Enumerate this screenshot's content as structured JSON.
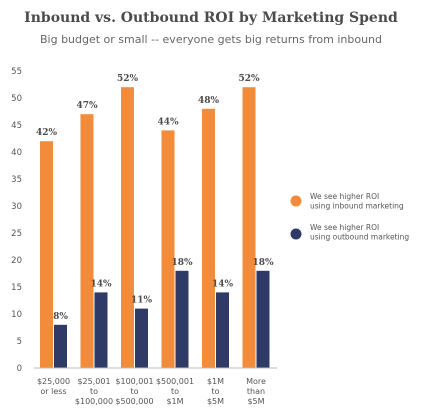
{
  "chart_data": {
    "type": "bar",
    "title": "Inbound vs. Outbound ROI by Marketing Spend",
    "subtitle": "Big budget or small -- everyone gets big returns from inbound",
    "categories": [
      [
        "$25,000",
        "or less"
      ],
      [
        "$25,001",
        "to",
        "$100,000"
      ],
      [
        "$100,001",
        "to",
        "$500,000"
      ],
      [
        "$500,001",
        "to",
        "$1M"
      ],
      [
        "$1M",
        "to",
        "$5M"
      ],
      [
        "More",
        "than",
        "$5M"
      ]
    ],
    "series": [
      {
        "name": "We see higher ROI using inbound marketing",
        "legend_lines": [
          "We see higher ROI",
          "using inbound marketing"
        ],
        "color": "#F28C3A",
        "values": [
          42,
          47,
          52,
          44,
          48,
          52
        ],
        "labels": [
          "42%",
          "47%",
          "52%",
          "44%",
          "48%",
          "52%"
        ]
      },
      {
        "name": "We see higher ROI using outbound marketing",
        "legend_lines": [
          "We see higher ROI",
          "using outbound marketing"
        ],
        "color": "#2F3A66",
        "values": [
          8,
          14,
          11,
          18,
          14,
          18
        ],
        "labels": [
          "8%",
          "14%",
          "11%",
          "18%",
          "14%",
          "18%"
        ]
      }
    ],
    "ylim": [
      0,
      55
    ],
    "yticks": [
      0,
      5,
      10,
      15,
      20,
      25,
      30,
      35,
      40,
      45,
      50,
      55
    ],
    "grid": false,
    "legend_position": "right"
  }
}
